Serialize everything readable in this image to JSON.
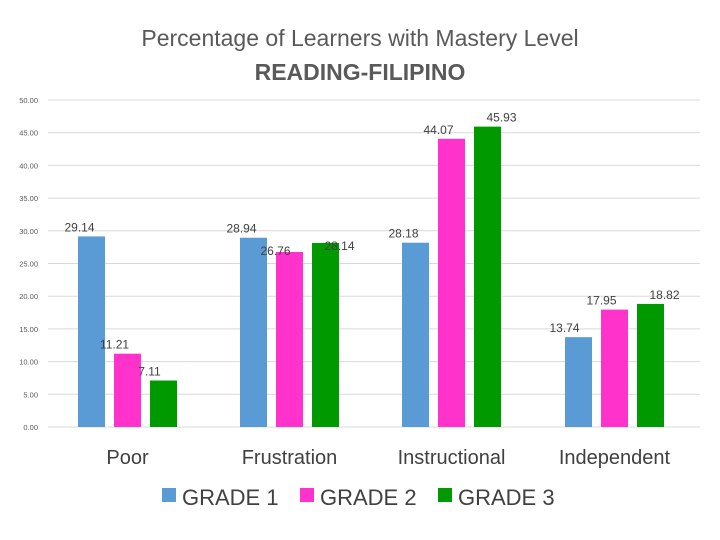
{
  "chart_data": {
    "type": "bar",
    "title_line1": "Percentage of Learners with Mastery Level",
    "title_line2": "READING-FILIPINO",
    "categories": [
      "Poor",
      "Frustration",
      "Instructional",
      "Independent"
    ],
    "series": [
      {
        "name": "GRADE 1",
        "color": "#5b9bd5",
        "values": [
          29.14,
          28.94,
          28.18,
          13.74
        ]
      },
      {
        "name": "GRADE 2",
        "color": "#ff33cc",
        "values": [
          11.21,
          26.76,
          44.07,
          17.95
        ]
      },
      {
        "name": "GRADE 3",
        "color": "#009900",
        "values": [
          7.11,
          28.14,
          45.93,
          18.82
        ]
      }
    ],
    "data_labels": [
      [
        "29.14",
        "28.94",
        "28.18",
        "13.74"
      ],
      [
        "11.21",
        "26.76",
        "44.07",
        "17.95"
      ],
      [
        "7.11",
        "28.14",
        "45.93",
        "18.82"
      ]
    ],
    "yticks": [
      "0.00",
      "5.00",
      "10.00",
      "15.00",
      "20.00",
      "25.00",
      "30.00",
      "35.00",
      "40.00",
      "45.00",
      "50.00"
    ],
    "ylim": [
      0,
      50
    ],
    "grid": true,
    "legend": "bottom"
  }
}
